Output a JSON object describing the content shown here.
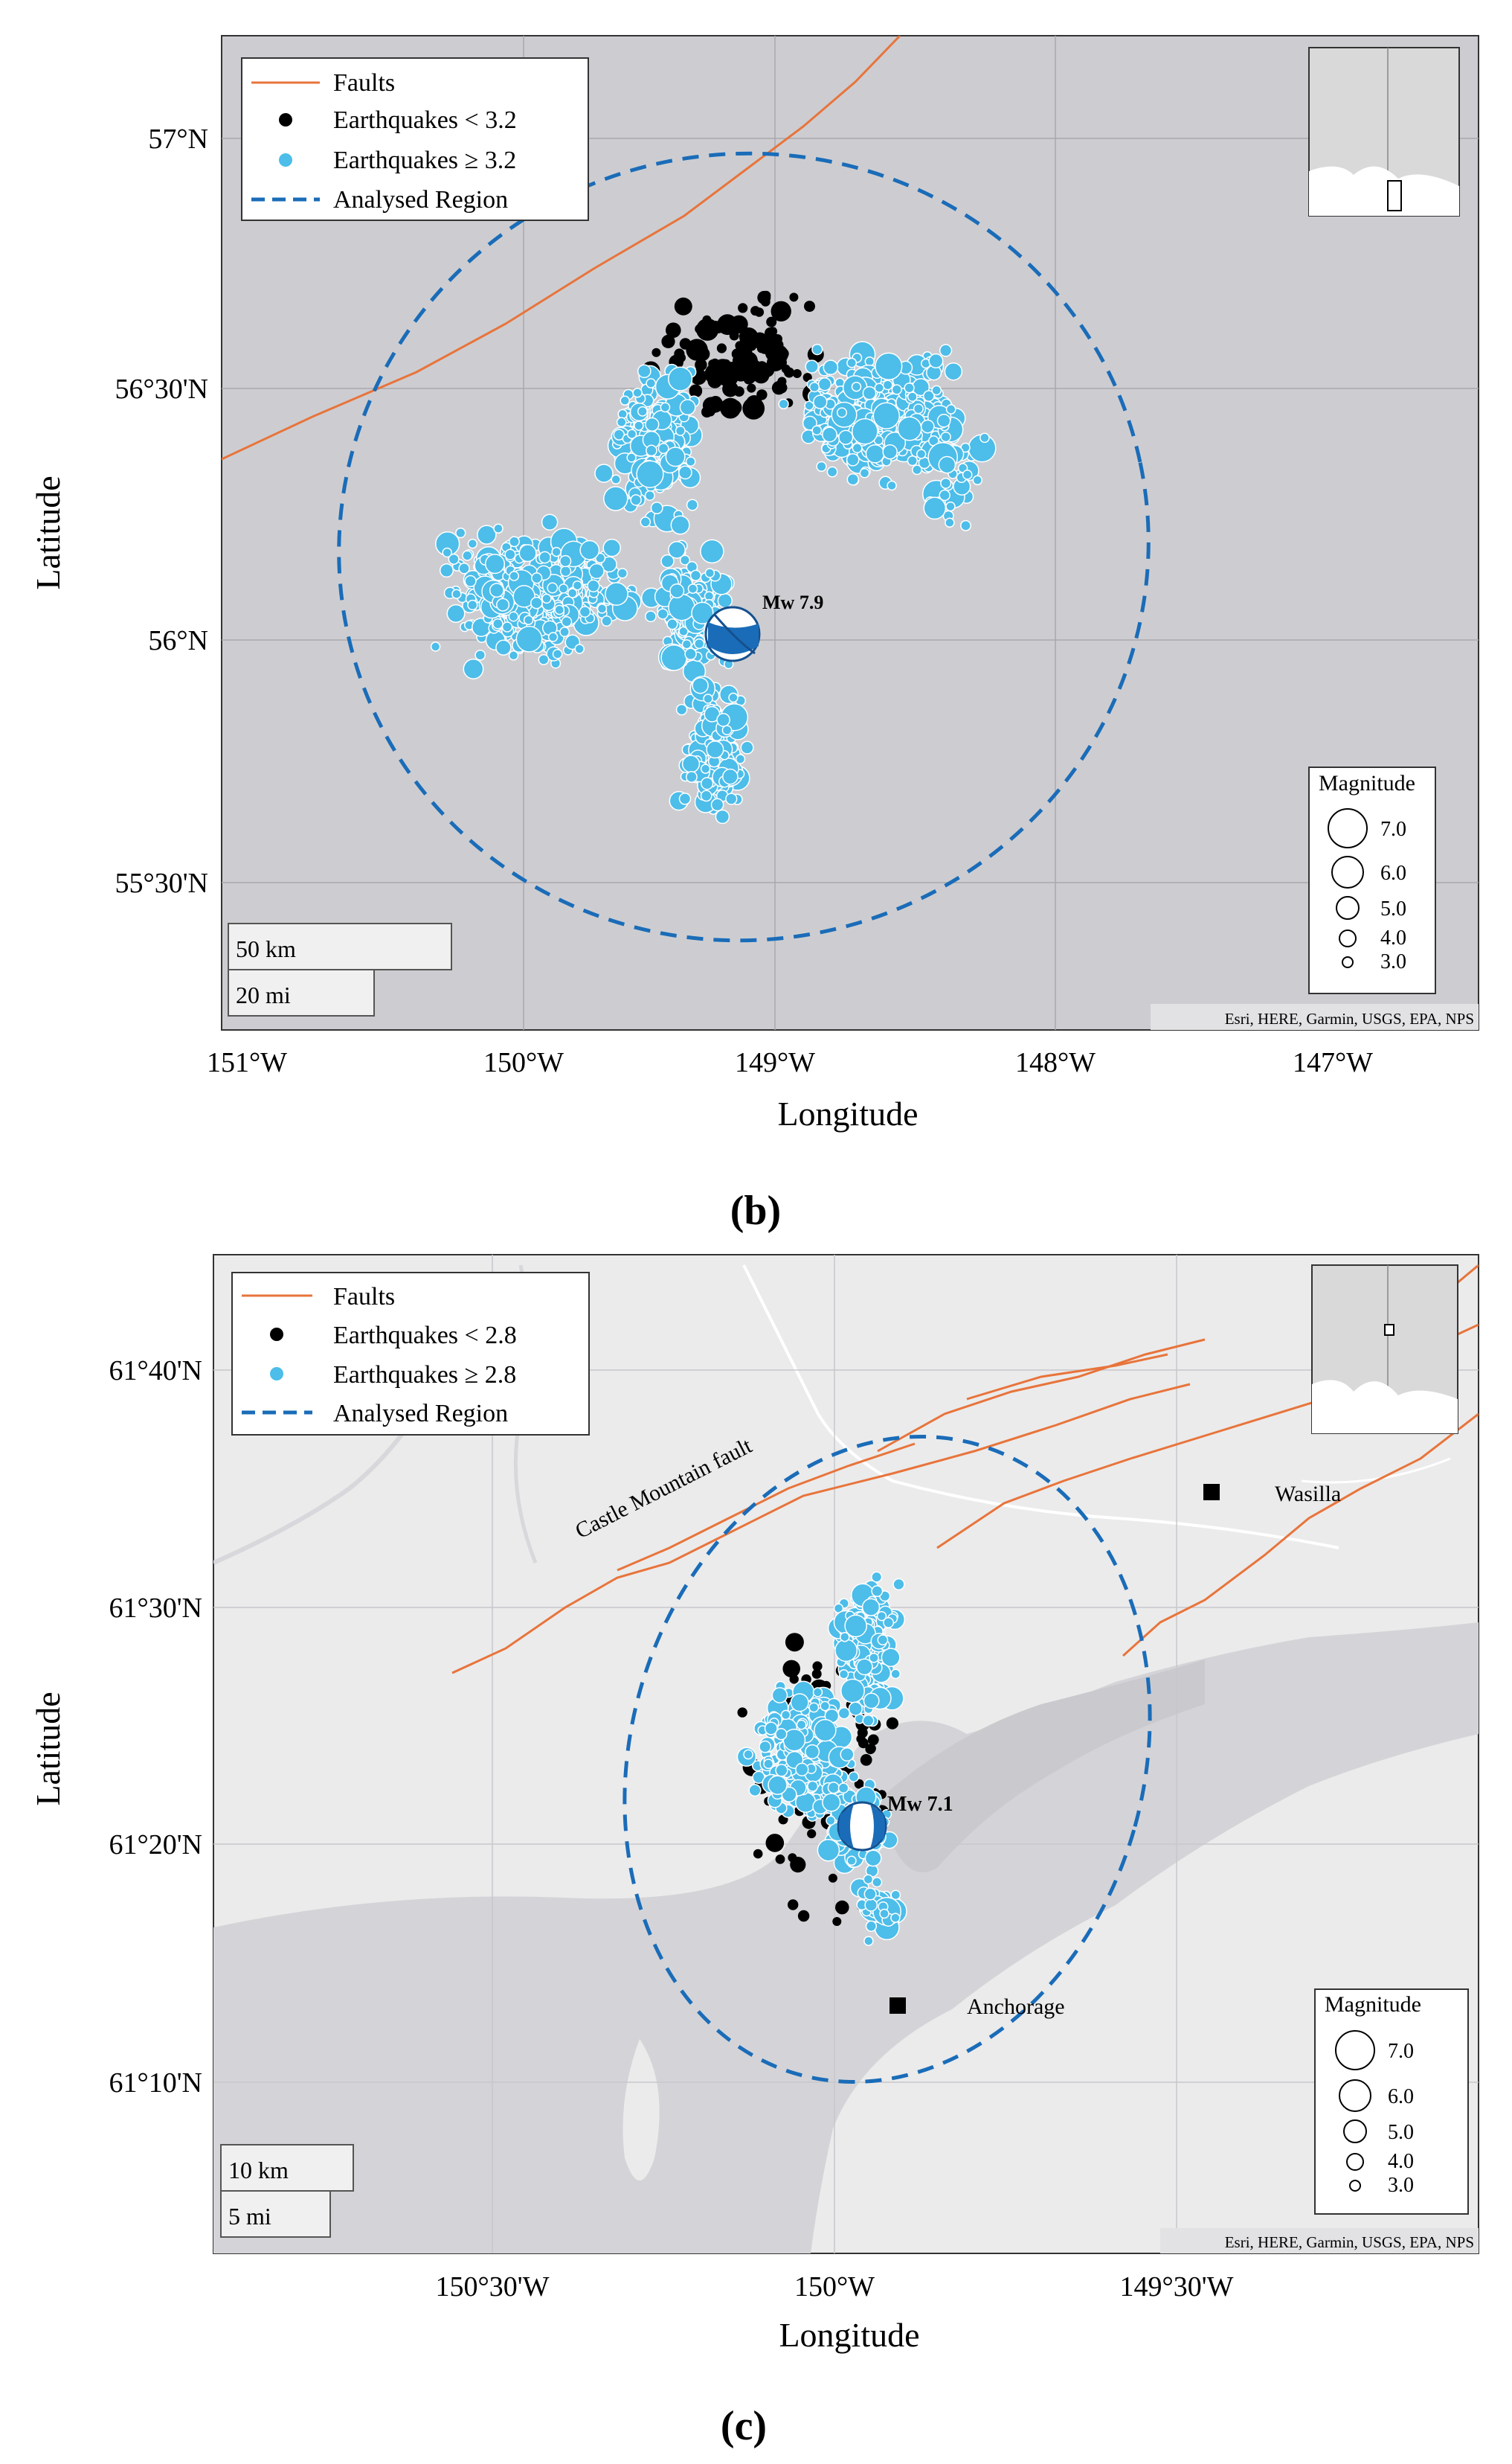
{
  "panels": [
    {
      "id": "b",
      "label": "(b)",
      "axes": {
        "xlabel": "Longitude",
        "ylabel": "Latitude"
      },
      "x_ticks": [
        "151°W",
        "150°W",
        "149°W",
        "148°W",
        "147°W"
      ],
      "y_ticks": [
        "57°N",
        "56°30'N",
        "56°N",
        "55°30'N"
      ],
      "legend": {
        "faults": "Faults",
        "eq_small": "Earthquakes < 3.2",
        "eq_large": "Earthquakes ≥ 3.2",
        "region": "Analysed Region"
      },
      "mainshock": "Mw 7.9",
      "magnitude_legend": {
        "title": "Magnitude",
        "values": [
          "7.0",
          "6.0",
          "5.0",
          "4.0",
          "3.0"
        ]
      },
      "scalebar": {
        "km": "50 km",
        "mi": "20 mi"
      },
      "attribution": "Esri, HERE, Garmin, USGS, EPA, NPS",
      "colors": {
        "ocean": "#cdcdd1",
        "land": "#d9d9d9",
        "quake_large": "#4dbde9",
        "quake_small": "#000000",
        "fault": "#e8743b",
        "region": "#1a6cb8"
      }
    },
    {
      "id": "c",
      "label": "(c)",
      "axes": {
        "xlabel": "Longitude",
        "ylabel": "Latitude"
      },
      "x_ticks": [
        "150°30'W",
        "150°W",
        "149°30'W"
      ],
      "y_ticks": [
        "61°40'N",
        "61°30'N",
        "61°20'N",
        "61°10'N"
      ],
      "legend": {
        "faults": "Faults",
        "eq_small": "Earthquakes < 2.8",
        "eq_large": "Earthquakes ≥ 2.8",
        "region": "Analysed Region"
      },
      "mainshock": "Mw 7.1",
      "places": {
        "fault_name": "Castle Mountain fault",
        "wasilla": "Wasilla",
        "anchorage": "Anchorage"
      },
      "magnitude_legend": {
        "title": "Magnitude",
        "values": [
          "7.0",
          "6.0",
          "5.0",
          "4.0",
          "3.0"
        ]
      },
      "scalebar": {
        "km": "10 km",
        "mi": "5 mi"
      },
      "attribution": "Esri, HERE, Garmin, USGS, EPA, NPS",
      "colors": {
        "land": "#ebebeb",
        "water": "#d4d4d8",
        "quake_large": "#4dbde9",
        "quake_small": "#000000",
        "fault": "#e8743b",
        "region": "#1a6cb8"
      }
    }
  ]
}
